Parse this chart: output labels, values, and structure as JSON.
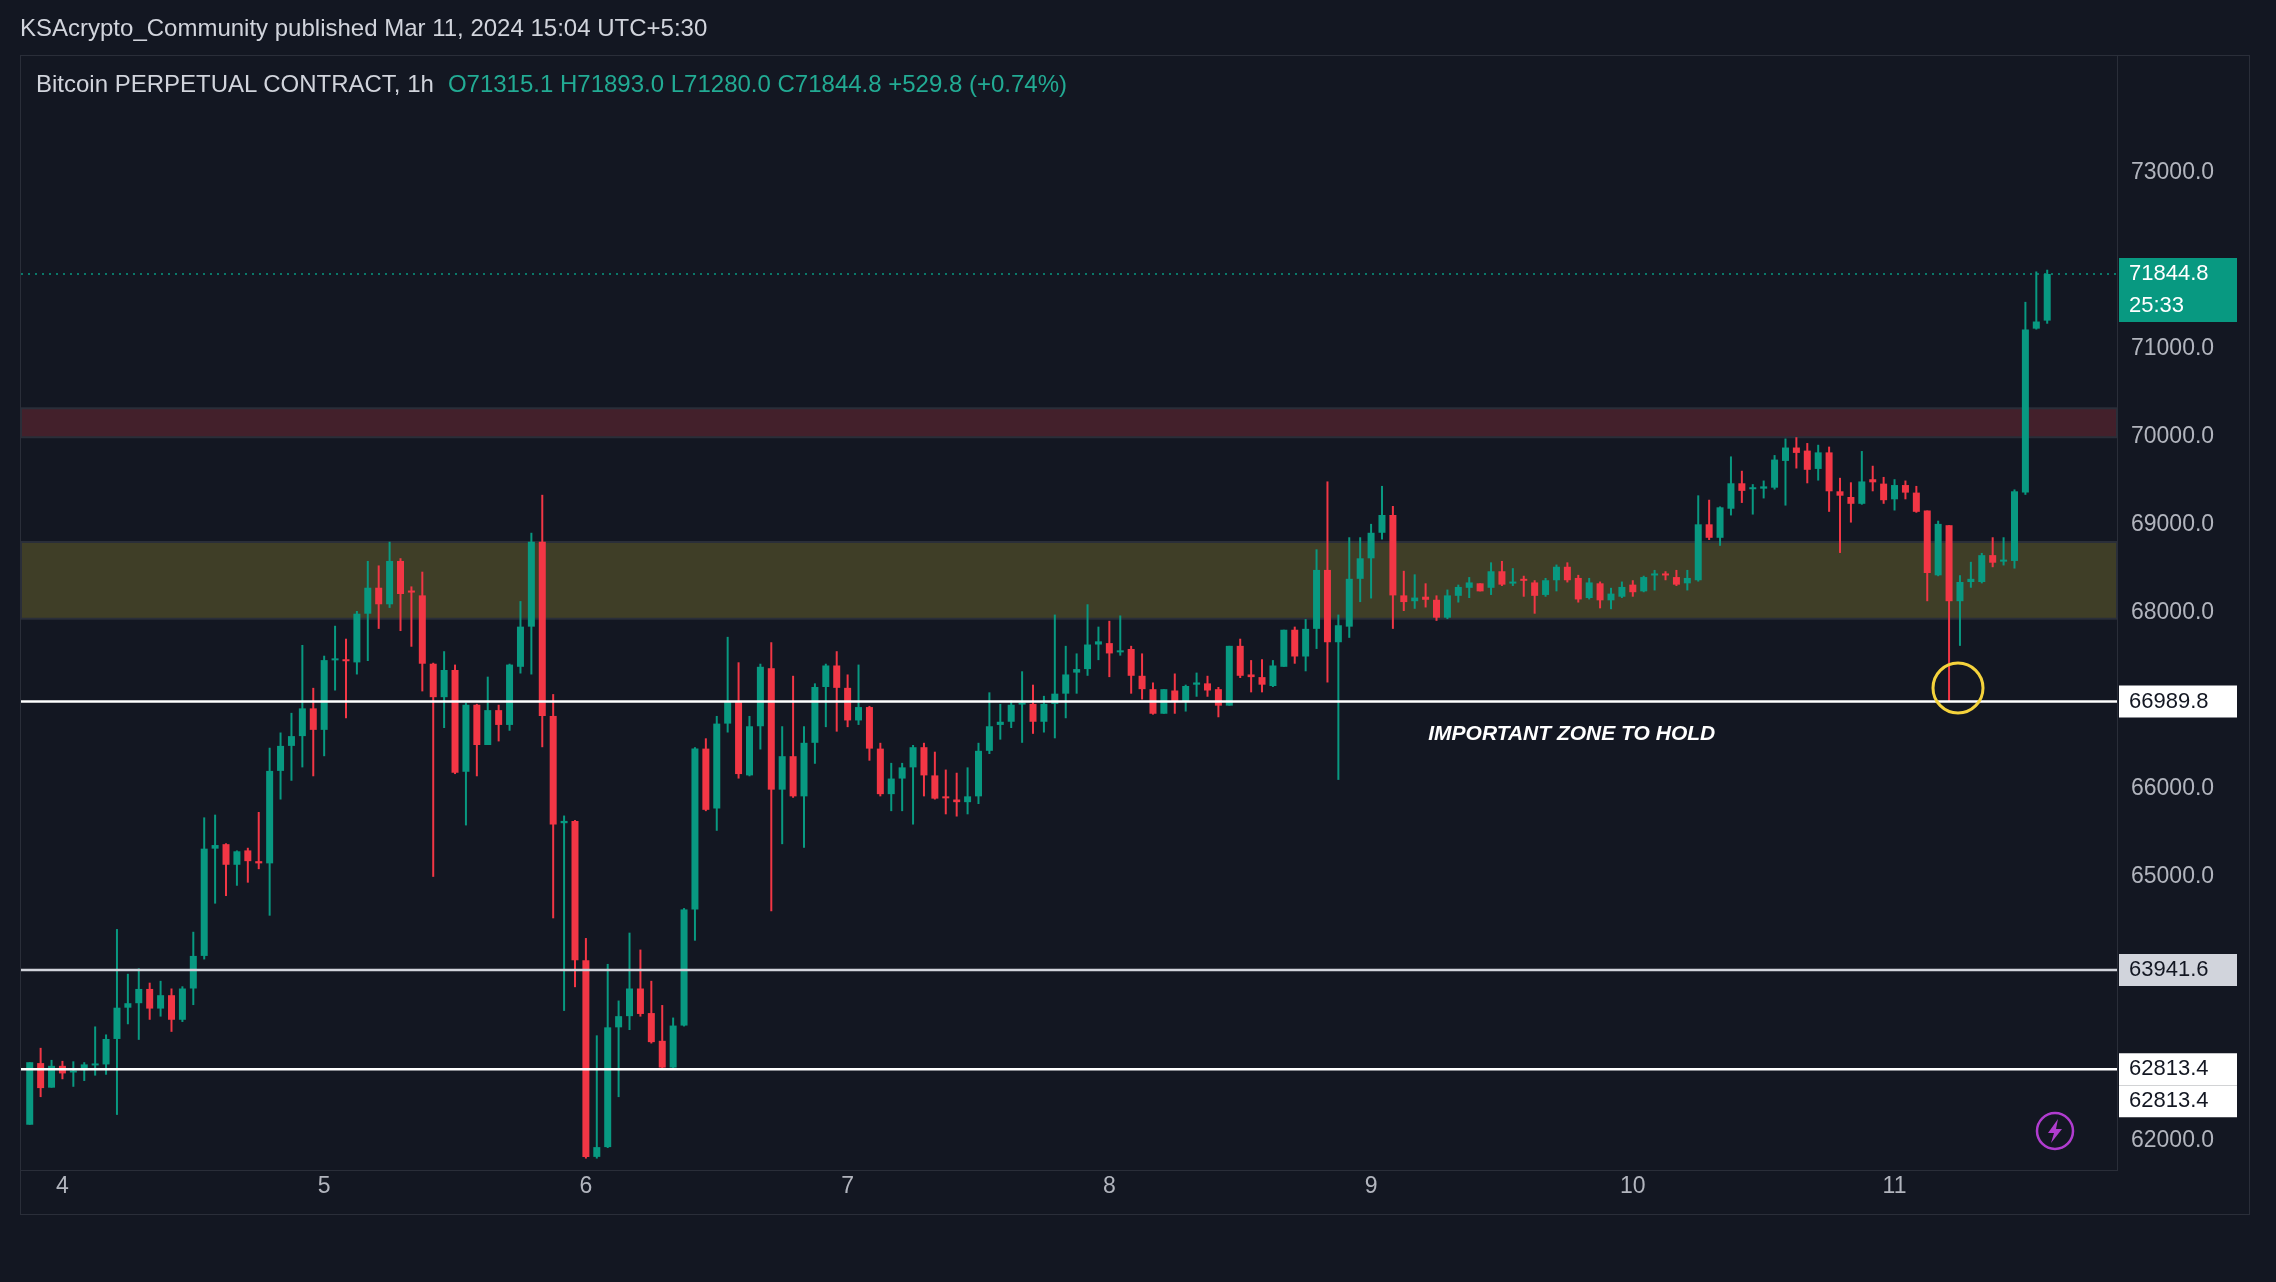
{
  "chart_data": {
    "type": "candlestick",
    "title": "Bitcoin PERPETUAL CONTRACT, 1h",
    "subtitle": "O71315.1 H71893.0 L71280.0 C71844.8 +529.8 (+0.74%)",
    "x": [
      "--03-03T21:00",
      "--03-03T22:00",
      "--03-03T23:00",
      "--03-04T00:00",
      "--03-04T01:00",
      "--03-04T02:00",
      "--03-04T03:00",
      "--03-04T04:00",
      "--03-04T05:00",
      "--03-04T06:00",
      "--03-04T07:00",
      "--03-04T08:00",
      "--03-04T09:00",
      "--03-04T10:00",
      "--03-04T11:00",
      "--03-04T12:00",
      "--03-04T13:00",
      "--03-04T14:00",
      "--03-04T15:00",
      "--03-04T16:00",
      "--03-04T17:00",
      "--03-04T18:00",
      "--03-04T19:00",
      "--03-04T20:00",
      "--03-04T21:00",
      "--03-04T22:00",
      "--03-04T23:00",
      "--03-05T00:00",
      "--03-05T01:00",
      "--03-05T02:00",
      "--03-05T03:00",
      "--03-05T04:00",
      "--03-05T05:00",
      "--03-05T06:00",
      "--03-05T07:00",
      "--03-05T08:00",
      "--03-05T09:00",
      "--03-05T10:00",
      "--03-05T11:00",
      "--03-05T12:00",
      "--03-05T13:00",
      "--03-05T14:00",
      "--03-05T15:00",
      "--03-05T16:00",
      "--03-05T17:00",
      "--03-05T18:00",
      "--03-05T19:00",
      "--03-05T20:00",
      "--03-05T21:00",
      "--03-05T22:00",
      "--03-05T23:00",
      "--03-06T00:00",
      "--03-06T01:00",
      "--03-06T02:00",
      "--03-06T03:00",
      "--03-06T04:00",
      "--03-06T05:00",
      "--03-06T06:00",
      "--03-06T07:00",
      "--03-06T08:00",
      "--03-06T09:00",
      "--03-06T10:00",
      "--03-06T11:00",
      "--03-06T12:00",
      "--03-06T13:00",
      "--03-06T14:00",
      "--03-06T15:00",
      "--03-06T16:00",
      "--03-06T17:00",
      "--03-06T18:00",
      "--03-06T19:00",
      "--03-06T20:00",
      "--03-06T21:00",
      "--03-06T22:00",
      "--03-06T23:00",
      "--03-07T00:00",
      "--03-07T01:00",
      "--03-07T02:00",
      "--03-07T03:00",
      "--03-07T04:00",
      "--03-07T05:00",
      "--03-07T06:00",
      "--03-07T07:00",
      "--03-07T08:00",
      "--03-07T09:00",
      "--03-07T10:00",
      "--03-07T11:00",
      "--03-07T12:00",
      "--03-07T13:00",
      "--03-07T14:00",
      "--03-07T15:00",
      "--03-07T16:00",
      "--03-07T17:00",
      "--03-07T18:00",
      "--03-07T19:00",
      "--03-07T20:00",
      "--03-07T21:00",
      "--03-07T22:00",
      "--03-07T23:00",
      "--03-08T00:00",
      "--03-08T01:00",
      "--03-08T02:00",
      "--03-08T03:00",
      "--03-08T04:00",
      "--03-08T05:00",
      "--03-08T06:00",
      "--03-08T07:00",
      "--03-08T08:00",
      "--03-08T09:00",
      "--03-08T10:00",
      "--03-08T11:00",
      "--03-08T12:00",
      "--03-08T13:00",
      "--03-08T14:00",
      "--03-08T15:00",
      "--03-08T16:00",
      "--03-08T17:00",
      "--03-08T18:00",
      "--03-08T19:00",
      "--03-08T20:00",
      "--03-08T21:00",
      "--03-08T22:00",
      "--03-08T23:00",
      "--03-09T00:00",
      "--03-09T01:00",
      "--03-09T02:00",
      "--03-09T03:00",
      "--03-09T04:00",
      "--03-09T05:00",
      "--03-09T06:00",
      "--03-09T07:00",
      "--03-09T08:00",
      "--03-09T09:00",
      "--03-09T10:00",
      "--03-09T11:00",
      "--03-09T12:00",
      "--03-09T13:00",
      "--03-09T14:00",
      "--03-09T15:00",
      "--03-09T16:00",
      "--03-09T17:00",
      "--03-09T18:00",
      "--03-09T19:00",
      "--03-09T20:00",
      "--03-09T21:00",
      "--03-09T22:00",
      "--03-09T23:00",
      "--03-10T00:00",
      "--03-10T01:00",
      "--03-10T02:00",
      "--03-10T03:00",
      "--03-10T04:00",
      "--03-10T05:00",
      "--03-10T06:00",
      "--03-10T07:00",
      "--03-10T08:00",
      "--03-10T09:00",
      "--03-10T10:00",
      "--03-10T11:00",
      "--03-10T12:00",
      "--03-10T13:00",
      "--03-10T14:00",
      "--03-10T15:00",
      "--03-10T16:00",
      "--03-10T17:00",
      "--03-10T18:00",
      "--03-10T19:00",
      "--03-10T20:00",
      "--03-10T21:00",
      "--03-10T22:00",
      "--03-10T23:00",
      "--03-11T00:00",
      "--03-11T01:00",
      "--03-11T02:00",
      "--03-11T03:00",
      "--03-11T04:00",
      "--03-11T05:00",
      "--03-11T06:00",
      "--03-11T07:00",
      "--03-11T08:00",
      "--03-11T09:00",
      "--03-11T10:00",
      "--03-11T11:00",
      "--03-11T12:00",
      "--03-11T13:00",
      "--03-11T14:00"
    ],
    "ohlc": [
      [
        62184,
        62894,
        62184,
        62894
      ],
      [
        62884,
        63057,
        62498,
        62600
      ],
      [
        62605,
        62920,
        62605,
        62853
      ],
      [
        62853,
        62909,
        62701,
        62767
      ],
      [
        62790,
        62904,
        62615,
        62800
      ],
      [
        62803,
        62894,
        62681,
        62869
      ],
      [
        62870,
        63300,
        62742,
        62880
      ],
      [
        62869,
        63209,
        62752,
        63158
      ],
      [
        63158,
        64406,
        62296,
        63513
      ],
      [
        63513,
        63898,
        63325,
        63564
      ],
      [
        63564,
        63960,
        63148,
        63726
      ],
      [
        63726,
        63797,
        63376,
        63503
      ],
      [
        63503,
        63818,
        63412,
        63655
      ],
      [
        63655,
        63731,
        63239,
        63376
      ],
      [
        63376,
        63756,
        63351,
        63731
      ],
      [
        63731,
        64375,
        63543,
        64101
      ],
      [
        64101,
        65674,
        64061,
        65319
      ],
      [
        65319,
        65705,
        64695,
        65360
      ],
      [
        65370,
        65380,
        64781,
        65136
      ],
      [
        65136,
        65299,
        64898,
        65289
      ],
      [
        65299,
        65329,
        64933,
        65177
      ],
      [
        65177,
        65735,
        65086,
        65152
      ],
      [
        65152,
        66465,
        64558,
        66202
      ],
      [
        66202,
        66638,
        65877,
        66486
      ],
      [
        66486,
        66861,
        66090,
        66597
      ],
      [
        66597,
        67632,
        66242,
        66912
      ],
      [
        66912,
        67145,
        66141,
        66668
      ],
      [
        66668,
        67510,
        66369,
        67460
      ],
      [
        67470,
        67850,
        67115,
        67480
      ],
      [
        67470,
        67703,
        66800,
        67450
      ],
      [
        67434,
        68018,
        67297,
        67987
      ],
      [
        67987,
        68586,
        67450,
        68282
      ],
      [
        68282,
        68535,
        67815,
        68094
      ],
      [
        68094,
        68804,
        68053,
        68586
      ],
      [
        68586,
        68617,
        67790,
        68211
      ],
      [
        68250,
        68297,
        67612,
        68240
      ],
      [
        68195,
        68464,
        67105,
        67419
      ],
      [
        67419,
        67430,
        64999,
        67039
      ],
      [
        67039,
        67561,
        66689,
        67348
      ],
      [
        67348,
        67409,
        66166,
        66181
      ],
      [
        66192,
        66978,
        65583,
        66953
      ],
      [
        66953,
        66963,
        66141,
        66496
      ],
      [
        66496,
        67272,
        66496,
        66892
      ],
      [
        66892,
        66953,
        66537,
        66724
      ],
      [
        66724,
        67419,
        66658,
        67409
      ],
      [
        67384,
        68130,
        67308,
        67840
      ],
      [
        67840,
        68906,
        67297,
        68804
      ],
      [
        68804,
        69337,
        66471,
        66826
      ],
      [
        66826,
        67074,
        64528,
        65593
      ],
      [
        65608,
        65695,
        63477,
        65634
      ],
      [
        65634,
        65644,
        63746,
        64051
      ],
      [
        64051,
        64304,
        61800,
        61819
      ],
      [
        61819,
        63199,
        61800,
        61930
      ],
      [
        61930,
        64010,
        61920,
        63290
      ],
      [
        63290,
        63594,
        62498,
        63417
      ],
      [
        63417,
        64365,
        63260,
        63731
      ],
      [
        63731,
        64173,
        63412,
        63442
      ],
      [
        63452,
        63818,
        63107,
        63122
      ],
      [
        63137,
        63543,
        62818,
        62833
      ],
      [
        62833,
        63401,
        62818,
        63310
      ],
      [
        63310,
        64644,
        63300,
        64629
      ],
      [
        64629,
        66471,
        64274,
        66455
      ],
      [
        66455,
        66572,
        65745,
        65760
      ],
      [
        65775,
        66826,
        65522,
        66739
      ],
      [
        66739,
        67724,
        66638,
        66993
      ],
      [
        66993,
        67435,
        66115,
        66166
      ],
      [
        66151,
        66826,
        66141,
        66709
      ],
      [
        66709,
        67419,
        66445,
        67384
      ],
      [
        67368,
        67663,
        64609,
        65989
      ],
      [
        65989,
        66709,
        65370,
        66369
      ],
      [
        66369,
        67282,
        65897,
        65913
      ],
      [
        65913,
        66709,
        65329,
        66521
      ],
      [
        66521,
        67196,
        66283,
        67155
      ],
      [
        67155,
        67419,
        66699,
        67399
      ],
      [
        67399,
        67561,
        66648,
        67145
      ],
      [
        67145,
        67297,
        66699,
        66775
      ],
      [
        66775,
        67409,
        66724,
        66927
      ],
      [
        66927,
        66940,
        66318,
        66455
      ],
      [
        66455,
        66521,
        65913,
        65938
      ],
      [
        65938,
        66293,
        65745,
        66115
      ],
      [
        66115,
        66293,
        65745,
        66242
      ],
      [
        66242,
        66496,
        65593,
        66471
      ],
      [
        66471,
        66521,
        65913,
        66151
      ],
      [
        66151,
        66420,
        65877,
        65887
      ],
      [
        65913,
        66217,
        65709,
        65897
      ],
      [
        65877,
        66181,
        65684,
        65847
      ],
      [
        65847,
        66242,
        65709,
        65913
      ],
      [
        65913,
        66521,
        65826,
        66430
      ],
      [
        66430,
        67094,
        66394,
        66709
      ],
      [
        66724,
        66963,
        66557,
        66760
      ],
      [
        66760,
        67003,
        66689,
        66953
      ],
      [
        66963,
        67333,
        66521,
        66978
      ],
      [
        66963,
        67181,
        66623,
        66760
      ],
      [
        66760,
        67054,
        66638,
        66963
      ],
      [
        66963,
        67977,
        66572,
        67079
      ],
      [
        67079,
        67622,
        66800,
        67297
      ],
      [
        67318,
        67536,
        67079,
        67358
      ],
      [
        67358,
        68094,
        67282,
        67637
      ],
      [
        67637,
        67840,
        67460,
        67673
      ],
      [
        67653,
        67906,
        67267,
        67536
      ],
      [
        67551,
        67967,
        67511,
        67571
      ],
      [
        67586,
        67622,
        67079,
        67282
      ],
      [
        67282,
        67536,
        67013,
        67130
      ],
      [
        67130,
        67206,
        66841,
        66851
      ],
      [
        66851,
        67130,
        66851,
        67130
      ],
      [
        67115,
        67308,
        66851,
        66993
      ],
      [
        66993,
        67181,
        66876,
        67166
      ],
      [
        67181,
        67318,
        67044,
        67206
      ],
      [
        67196,
        67282,
        67044,
        67115
      ],
      [
        67130,
        67155,
        66811,
        66943
      ],
      [
        66943,
        67622,
        66943,
        67622
      ],
      [
        67622,
        67703,
        67257,
        67282
      ],
      [
        67297,
        67460,
        67094,
        67267
      ],
      [
        67267,
        67470,
        67094,
        67181
      ],
      [
        67166,
        67460,
        67155,
        67399
      ],
      [
        67384,
        67805,
        67384,
        67805
      ],
      [
        67805,
        67840,
        67419,
        67501
      ],
      [
        67501,
        67926,
        67333,
        67815
      ],
      [
        67815,
        68718,
        67587,
        68484
      ],
      [
        68484,
        69489,
        67206,
        67663
      ],
      [
        67663,
        67977,
        66100,
        67856
      ],
      [
        67840,
        68855,
        67713,
        68383
      ],
      [
        68383,
        68855,
        68119,
        68616
      ],
      [
        68616,
        69007,
        68160,
        68906
      ],
      [
        68906,
        69438,
        68830,
        69108
      ],
      [
        69108,
        69210,
        67815,
        68195
      ],
      [
        68195,
        68474,
        68018,
        68119
      ],
      [
        68129,
        68434,
        68043,
        68170
      ],
      [
        68180,
        68332,
        68058,
        68145
      ],
      [
        68145,
        68195,
        67906,
        67942
      ],
      [
        67942,
        68261,
        67926,
        68195
      ],
      [
        68190,
        68317,
        68114,
        68291
      ],
      [
        68281,
        68403,
        68165,
        68342
      ],
      [
        68332,
        68332,
        68241,
        68241
      ],
      [
        68281,
        68570,
        68200,
        68469
      ],
      [
        68469,
        68586,
        68302,
        68317
      ],
      [
        68332,
        68504,
        68302,
        68352
      ],
      [
        68383,
        68418,
        68180,
        68367
      ],
      [
        68342,
        68367,
        67987,
        68190
      ],
      [
        68200,
        68393,
        68180,
        68367
      ],
      [
        68367,
        68545,
        68241,
        68520
      ],
      [
        68520,
        68570,
        68342,
        68367
      ],
      [
        68393,
        68428,
        68114,
        68149
      ],
      [
        68165,
        68393,
        68149,
        68342
      ],
      [
        68332,
        68352,
        68048,
        68139
      ],
      [
        68139,
        68281,
        68038,
        68215
      ],
      [
        68180,
        68352,
        68165,
        68291
      ],
      [
        68317,
        68367,
        68180,
        68231
      ],
      [
        68241,
        68418,
        68231,
        68403
      ],
      [
        68428,
        68484,
        68251,
        68444
      ],
      [
        68444,
        68469,
        68367,
        68428
      ],
      [
        68403,
        68484,
        68302,
        68317
      ],
      [
        68332,
        68484,
        68251,
        68393
      ],
      [
        68367,
        69331,
        68352,
        69002
      ],
      [
        69002,
        69281,
        68824,
        68849
      ],
      [
        68849,
        69205,
        68758,
        69195
      ],
      [
        69179,
        69773,
        69103,
        69468
      ],
      [
        69468,
        69610,
        69245,
        69382
      ],
      [
        69407,
        69458,
        69113,
        69423
      ],
      [
        69407,
        69499,
        69296,
        69433
      ],
      [
        69418,
        69788,
        69397,
        69737
      ],
      [
        69722,
        69976,
        69215,
        69874
      ],
      [
        69874,
        69991,
        69636,
        69813
      ],
      [
        69839,
        69925,
        69468,
        69621
      ],
      [
        69631,
        69905,
        69499,
        69819
      ],
      [
        69819,
        69884,
        69144,
        69377
      ],
      [
        69377,
        69530,
        68677,
        69327
      ],
      [
        69312,
        69479,
        69022,
        69235
      ],
      [
        69235,
        69834,
        69225,
        69489
      ],
      [
        69514,
        69667,
        69377,
        69479
      ],
      [
        69464,
        69540,
        69235,
        69276
      ],
      [
        69286,
        69514,
        69159,
        69448
      ],
      [
        69448,
        69499,
        69286,
        69362
      ],
      [
        69362,
        69438,
        69134,
        69144
      ],
      [
        69159,
        69159,
        68129,
        68449
      ],
      [
        68423,
        69043,
        68413,
        69007
      ],
      [
        68992,
        68992,
        66989.8,
        68129
      ],
      [
        68129,
        68424,
        67622,
        68347
      ],
      [
        68347,
        68576,
        68282,
        68383
      ],
      [
        68347,
        68677,
        68332,
        68652
      ],
      [
        68652,
        68855,
        68515,
        68566
      ],
      [
        68586,
        68855,
        68535,
        68601
      ],
      [
        68586,
        69398,
        68500,
        69377
      ],
      [
        69362,
        71528,
        69337,
        71214
      ],
      [
        71224,
        71873,
        71214,
        71305
      ],
      [
        71315.1,
        71893.0,
        71280.0,
        71844.8
      ]
    ],
    "colors": [
      "#089981",
      "#f23645",
      "#089981",
      "#f23645",
      "#089981",
      "#089981",
      "#089981",
      "#089981",
      "#089981",
      "#089981",
      "#089981",
      "#f23645",
      "#089981",
      "#f23645",
      "#089981",
      "#089981",
      "#089981",
      "#089981",
      "#f23645",
      "#089981",
      "#f23645",
      "#f23645",
      "#089981",
      "#089981",
      "#089981",
      "#089981",
      "#f23645",
      "#089981",
      "#089981",
      "#f23645",
      "#089981",
      "#089981",
      "#f23645",
      "#089981",
      "#f23645",
      "#f23645",
      "#f23645",
      "#f23645",
      "#089981",
      "#f23645",
      "#089981",
      "#f23645",
      "#089981",
      "#f23645",
      "#089981",
      "#089981",
      "#089981",
      "#f23645",
      "#f23645",
      "#089981",
      "#f23645",
      "#f23645",
      "#089981",
      "#089981",
      "#089981",
      "#089981",
      "#f23645",
      "#f23645",
      "#f23645",
      "#089981",
      "#089981",
      "#089981",
      "#f23645",
      "#089981",
      "#089981",
      "#f23645",
      "#089981",
      "#089981",
      "#f23645",
      "#089981",
      "#f23645",
      "#089981",
      "#089981",
      "#089981",
      "#f23645",
      "#f23645",
      "#089981",
      "#f23645",
      "#f23645",
      "#089981",
      "#089981",
      "#089981",
      "#f23645",
      "#f23645",
      "#f23645",
      "#f23645",
      "#089981",
      "#089981",
      "#089981",
      "#089981",
      "#089981",
      "#089981",
      "#f23645",
      "#089981",
      "#089981",
      "#089981",
      "#089981",
      "#089981",
      "#089981",
      "#f23645",
      "#089981",
      "#f23645",
      "#f23645",
      "#f23645",
      "#089981",
      "#f23645",
      "#089981",
      "#089981",
      "#f23645",
      "#f23645",
      "#089981",
      "#f23645",
      "#f23645",
      "#f23645",
      "#089981",
      "#089981",
      "#f23645",
      "#089981",
      "#089981",
      "#f23645",
      "#089981",
      "#089981",
      "#089981",
      "#089981",
      "#089981",
      "#f23645",
      "#f23645",
      "#089981",
      "#f23645",
      "#f23645",
      "#089981",
      "#089981",
      "#089981",
      "#f23645",
      "#089981",
      "#f23645",
      "#089981",
      "#f23645",
      "#f23645",
      "#089981",
      "#089981",
      "#f23645",
      "#f23645",
      "#089981",
      "#f23645",
      "#089981",
      "#089981",
      "#f23645",
      "#089981",
      "#089981",
      "#f23645",
      "#f23645",
      "#089981",
      "#089981",
      "#f23645",
      "#089981",
      "#089981",
      "#f23645",
      "#089981",
      "#089981",
      "#089981",
      "#089981",
      "#f23645",
      "#f23645",
      "#089981",
      "#f23645",
      "#f23645",
      "#f23645",
      "#089981",
      "#f23645",
      "#f23645",
      "#089981",
      "#f23645",
      "#f23645",
      "#f23645",
      "#089981",
      "#f23645",
      "#089981",
      "#089981",
      "#089981",
      "#f23645",
      "#089981",
      "#089981",
      "#089981",
      "#089981",
      "#089981"
    ],
    "xlim": [
      "--03-03T20:12",
      "--03-11T20:24"
    ],
    "xticks": [
      {
        "value": "--03-04",
        "label": "4"
      },
      {
        "value": "--03-05",
        "label": "5"
      },
      {
        "value": "--03-06",
        "label": "6"
      },
      {
        "value": "--03-07",
        "label": "7"
      },
      {
        "value": "--03-08",
        "label": "8"
      },
      {
        "value": "--03-09",
        "label": "9"
      },
      {
        "value": "--03-10",
        "label": "10"
      },
      {
        "value": "--03-11",
        "label": "11"
      }
    ],
    "ylim": [
      61670,
      74320
    ],
    "yticks": [
      {
        "value": 62000,
        "label": "62000.0"
      },
      {
        "value": 65000,
        "label": "65000.0"
      },
      {
        "value": 66000,
        "label": "66000.0"
      },
      {
        "value": 68000,
        "label": "68000.0"
      },
      {
        "value": 69000,
        "label": "69000.0"
      },
      {
        "value": 70000,
        "label": "70000.0"
      },
      {
        "value": 71000,
        "label": "71000.0"
      },
      {
        "value": 73000,
        "label": "73000.0"
      }
    ],
    "bands": [
      {
        "axis": "y",
        "from": 67930,
        "to": 68800,
        "color": "#3f3e27"
      },
      {
        "axis": "y",
        "from": 69990,
        "to": 70320,
        "color": "#43202b"
      }
    ],
    "ref_lines": [
      {
        "axis": "y",
        "value": 71844.8,
        "label": "71844.8",
        "color": "#089981",
        "line_style": "dotted"
      },
      {
        "axis": "y",
        "value": 62813.4,
        "label": "62813.4",
        "color": "#ffffff"
      },
      {
        "axis": "y",
        "value": 66989.8,
        "label": "66989.8",
        "color": "#ffffff"
      },
      {
        "axis": "y",
        "value": 63941.6,
        "label": "63941.6",
        "color": "#d1d4dc"
      }
    ],
    "annotations": [
      "KSAcrypto_Community published Mar 11, 2024 15:04 UTC+5:30",
      "25:33",
      "62813.4",
      {
        "text": "IMPORTANT ZONE TO HOLD",
        "x": "--03-09T18:24",
        "y": 66989.8
      }
    ]
  }
}
